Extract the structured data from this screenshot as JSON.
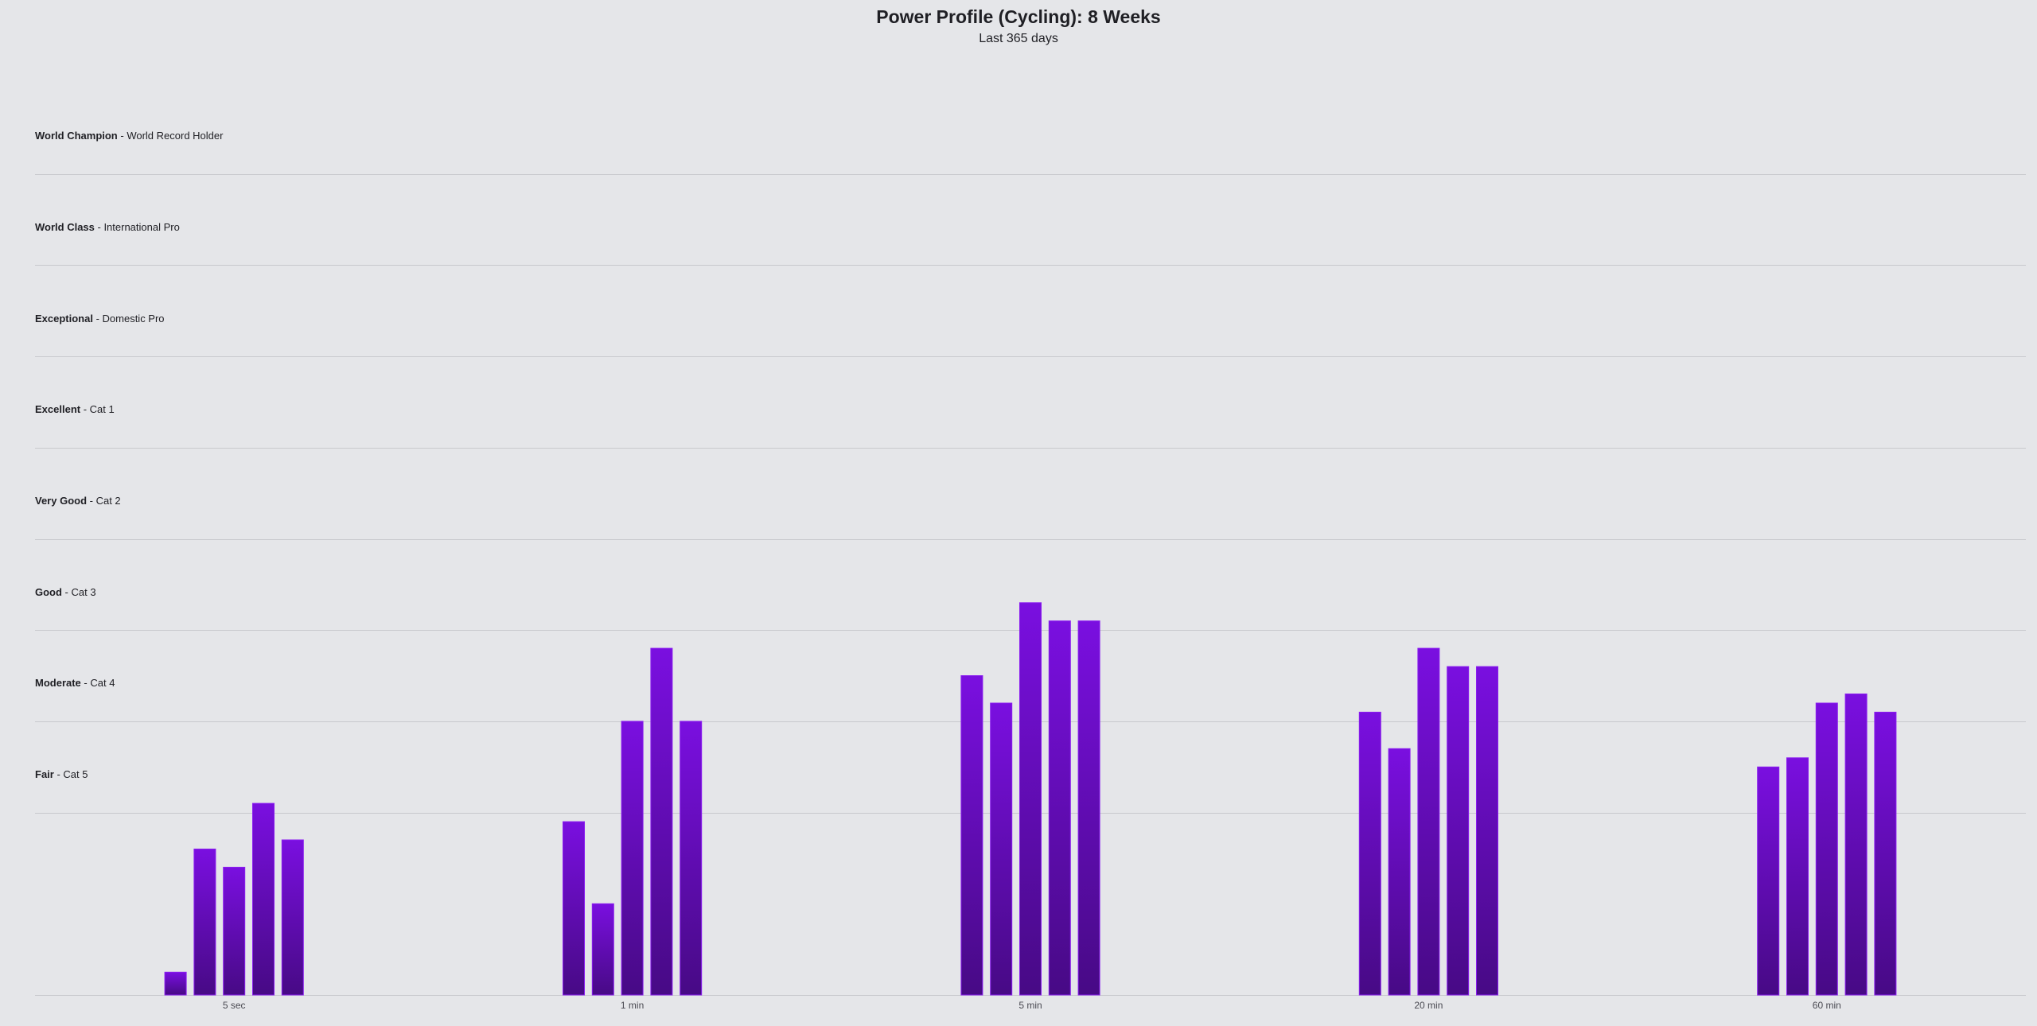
{
  "chart_data": {
    "type": "bar",
    "title": "Power Profile (Cycling): 8 Weeks",
    "subtitle": "Last 365 days",
    "categories": [
      "5 sec",
      "1 min",
      "5 min",
      "20 min",
      "60 min"
    ],
    "levels": [
      {
        "name": "World Champion",
        "desc": "World Record Holder"
      },
      {
        "name": "World Class",
        "desc": "International Pro"
      },
      {
        "name": "Exceptional",
        "desc": "Domestic Pro"
      },
      {
        "name": "Excellent",
        "desc": "Cat 1"
      },
      {
        "name": "Very Good",
        "desc": "Cat 2"
      },
      {
        "name": "Good",
        "desc": "Cat 3"
      },
      {
        "name": "Moderate",
        "desc": "Cat 4"
      },
      {
        "name": "Fair",
        "desc": "Cat 5"
      }
    ],
    "y_unit": "level bands (0 = bottom, each band = 1.0)",
    "ylim": [
      0,
      10
    ],
    "bars_per_category": 5,
    "values": [
      [
        0.25,
        1.6,
        1.4,
        2.1,
        1.7
      ],
      [
        1.9,
        1.0,
        3.0,
        3.8,
        3.0
      ],
      [
        3.5,
        3.2,
        4.3,
        4.1,
        4.1
      ],
      [
        3.1,
        2.7,
        3.8,
        3.6,
        3.6
      ],
      [
        2.5,
        2.6,
        3.2,
        3.3,
        3.1
      ]
    ],
    "bar_color_top": "#7a0fe0",
    "bar_color_bottom": "#470a85",
    "grid": true
  }
}
